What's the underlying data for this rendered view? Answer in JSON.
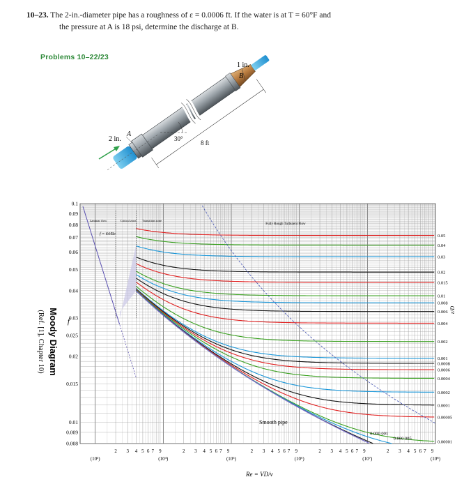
{
  "problem": {
    "number": "10–23.",
    "line1": "The 2-in.-diameter pipe has a roughness of ε = 0.0006 ft. If the water is at T = 60°F and",
    "line2": "the pressure at A is 18 psi, determine the discharge at B."
  },
  "figure": {
    "title": "Problems 10–22/23",
    "labels": {
      "outlet_dia": "1 in.",
      "point_b": "B",
      "inlet_dia": "2 in.",
      "point_a": "A",
      "angle": "30°",
      "length": "8 ft"
    }
  },
  "moody": {
    "side_title": "Moody Diagram",
    "side_ref": "(Ref. [1], Chapter 10)",
    "f_label": "f",
    "zones": {
      "laminar": "Laminar flow",
      "critical": "Critical zone",
      "transition": "Transition zone",
      "rough": "Fully Rough Turbulent Flow"
    },
    "laminar_eq": "f = 64/Re",
    "smooth_label": "Smooth pipe",
    "re_label": "Re = VD/ν",
    "rel_roughness_label": "ε/D",
    "y_ticks": [
      "0.1",
      "0.09",
      "0.08",
      "0.07",
      "0.06",
      "0.05",
      "0.04",
      "0.03",
      "0.025",
      "0.02",
      "0.015",
      "0.01",
      "0.009",
      "0.008"
    ],
    "x_decades": [
      "(10³)",
      "(10⁴)",
      "(10⁵)",
      "(10⁶)",
      "(10⁷)",
      "(10⁸)"
    ],
    "x_minor": [
      "2",
      "3",
      "4",
      "5",
      "6",
      "7",
      "9"
    ],
    "eps_labels": [
      "0.05",
      "0.04",
      "0.03",
      "0.02",
      "0.015",
      "0.01",
      "0.008",
      "0.006",
      "0.004",
      "0.002",
      "0.001",
      "0.0008",
      "0.0006",
      "0.0004",
      "0.0002",
      "0.0001",
      "0.00005",
      "0.00001"
    ],
    "inner_eps_labels": [
      "0.000 001",
      "0.000 005"
    ]
  },
  "chart_data": {
    "type": "line",
    "title": "Moody Diagram",
    "xlabel": "Re = VD/ν",
    "ylabel": "f",
    "xscale": "log",
    "yscale": "log",
    "xlim": [
      600,
      100000000
    ],
    "ylim": [
      0.008,
      0.1
    ],
    "series": [
      {
        "name": "0.05",
        "eps": 0.05
      },
      {
        "name": "0.04",
        "eps": 0.04
      },
      {
        "name": "0.03",
        "eps": 0.03
      },
      {
        "name": "0.02",
        "eps": 0.02
      },
      {
        "name": "0.015",
        "eps": 0.015
      },
      {
        "name": "0.01",
        "eps": 0.01
      },
      {
        "name": "0.008",
        "eps": 0.008
      },
      {
        "name": "0.006",
        "eps": 0.006
      },
      {
        "name": "0.004",
        "eps": 0.004
      },
      {
        "name": "0.002",
        "eps": 0.002
      },
      {
        "name": "0.001",
        "eps": 0.001
      },
      {
        "name": "0.0008",
        "eps": 0.0008
      },
      {
        "name": "0.0006",
        "eps": 0.0006
      },
      {
        "name": "0.0004",
        "eps": 0.0004
      },
      {
        "name": "0.0002",
        "eps": 0.0002
      },
      {
        "name": "0.0001",
        "eps": 0.0001
      },
      {
        "name": "0.00005",
        "eps": 5e-05
      },
      {
        "name": "0.00001",
        "eps": 1e-05
      },
      {
        "name": "0.000 005",
        "eps": 5e-06
      },
      {
        "name": "0.000 001",
        "eps": 1e-06
      },
      {
        "name": "Smooth pipe",
        "eps": 0
      }
    ]
  }
}
